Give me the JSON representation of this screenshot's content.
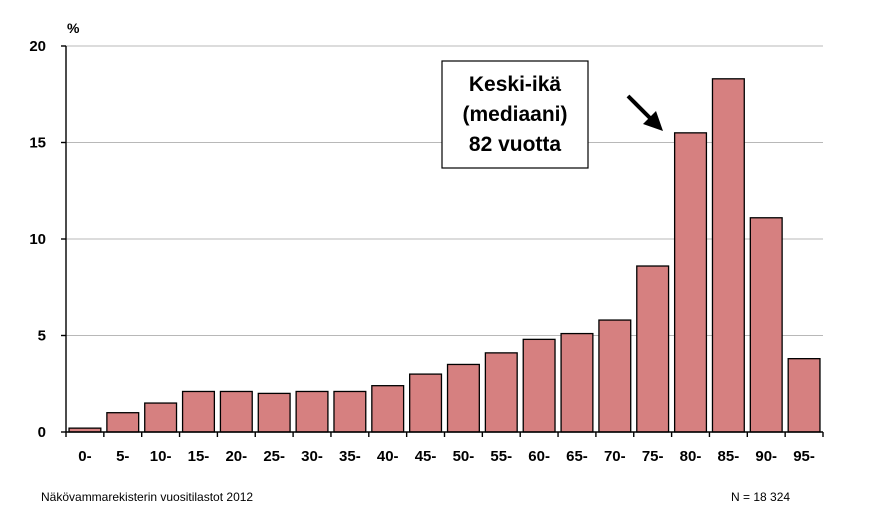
{
  "chart_data": {
    "type": "bar",
    "unit_label": "%",
    "categories": [
      "0-",
      "5-",
      "10-",
      "15-",
      "20-",
      "25-",
      "30-",
      "35-",
      "40-",
      "45-",
      "50-",
      "55-",
      "60-",
      "65-",
      "70-",
      "75-",
      "80-",
      "85-",
      "90-",
      "95-"
    ],
    "values": [
      0.2,
      1.0,
      1.5,
      2.1,
      2.1,
      2.0,
      2.1,
      2.1,
      2.4,
      3.0,
      3.5,
      4.1,
      4.8,
      5.1,
      5.8,
      8.6,
      15.5,
      18.3,
      11.1,
      3.8
    ],
    "ylim": [
      0,
      20
    ],
    "yticks": [
      0,
      5,
      10,
      15,
      20
    ],
    "grid": true,
    "bar_color": "#d68080",
    "annotation": {
      "lines": [
        "Keski-ikä",
        "(mediaani)",
        "82 vuotta"
      ],
      "points_to": "80-"
    }
  },
  "footer": {
    "source": "Näkövammarekisterin vuositilastot  2012",
    "sample_size": "N = 18 324"
  }
}
